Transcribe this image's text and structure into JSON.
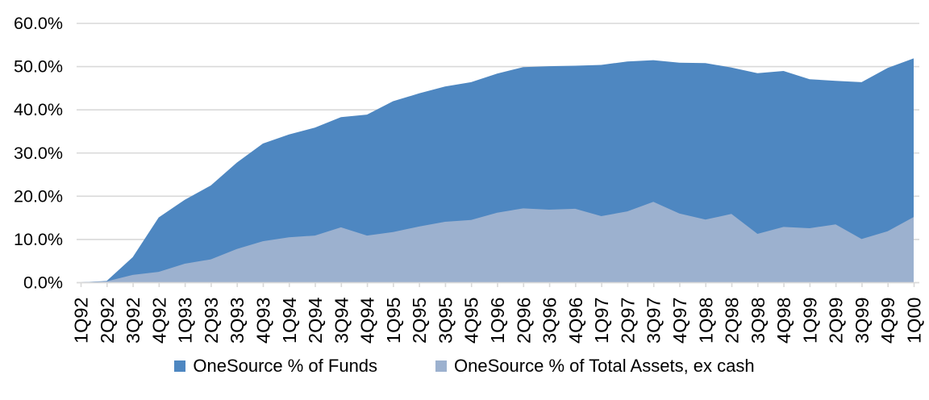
{
  "chart_data": {
    "type": "area",
    "title": "",
    "xlabel": "",
    "ylabel": "",
    "ylim": [
      0,
      60
    ],
    "y_ticks": [
      "0.0%",
      "10.0%",
      "20.0%",
      "30.0%",
      "40.0%",
      "50.0%",
      "60.0%"
    ],
    "grid": "horizontal",
    "gridline_color": "#D9D9D9",
    "axis_color": "#D9D9D9",
    "legend_position": "bottom",
    "categories": [
      "1Q92",
      "2Q92",
      "3Q92",
      "4Q92",
      "1Q93",
      "2Q93",
      "3Q93",
      "4Q93",
      "1Q94",
      "2Q94",
      "3Q94",
      "4Q94",
      "1Q95",
      "2Q95",
      "3Q95",
      "4Q95",
      "1Q96",
      "2Q96",
      "3Q96",
      "4Q96",
      "1Q97",
      "2Q97",
      "3Q97",
      "4Q97",
      "1Q98",
      "2Q98",
      "3Q98",
      "4Q98",
      "1Q99",
      "2Q99",
      "3Q99",
      "4Q99",
      "1Q00"
    ],
    "series": [
      {
        "name": "OneSource % of Funds",
        "color": "#4E87C1",
        "values": [
          0.0,
          0.3,
          5.8,
          15.0,
          19.1,
          22.4,
          27.7,
          32.1,
          34.2,
          35.8,
          38.2,
          38.8,
          41.9,
          43.7,
          45.3,
          46.3,
          48.3,
          49.8,
          50.0,
          50.1,
          50.3,
          51.1,
          51.4,
          50.8,
          50.7,
          49.7,
          48.4,
          48.9,
          47.0,
          46.6,
          46.3,
          49.6,
          51.8
        ]
      },
      {
        "name": "OneSource % of Total Assets, ex cash",
        "color": "#9CB1CF",
        "values": [
          0.0,
          0.2,
          1.7,
          2.4,
          4.3,
          5.3,
          7.7,
          9.5,
          10.4,
          10.8,
          12.7,
          10.8,
          11.6,
          12.9,
          14.0,
          14.4,
          16.1,
          17.1,
          16.8,
          17.0,
          15.3,
          16.4,
          18.6,
          15.9,
          14.5,
          15.8,
          11.2,
          12.8,
          12.5,
          13.4,
          10.0,
          11.8,
          15.1
        ]
      }
    ]
  }
}
